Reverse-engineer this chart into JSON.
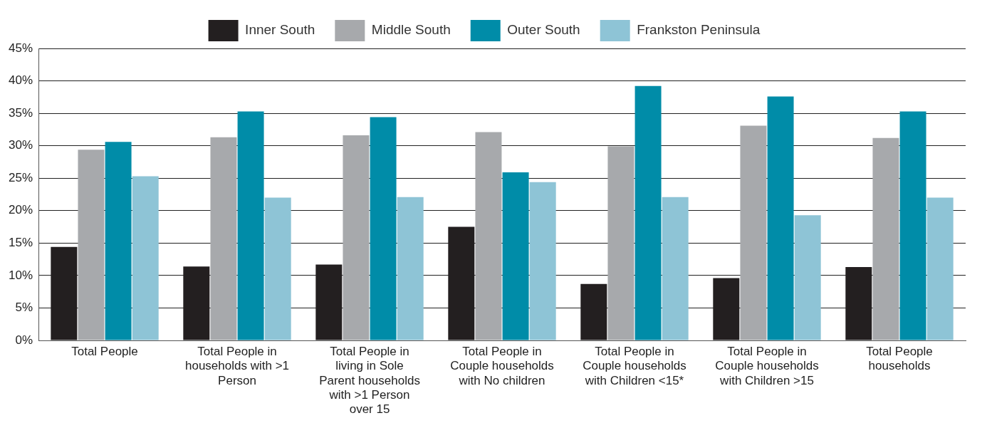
{
  "chart_data": {
    "type": "bar",
    "categories": [
      "Total People",
      "Total People in households with >1 Person",
      "Total People in living in Sole Parent households with >1 Person over 15",
      "Total People in Couple households with No children",
      "Total People in Couple households with Children <15*",
      "Total People in Couple households with Children >15",
      "Total People households"
    ],
    "series": [
      {
        "name": "Inner South",
        "color": "#231f20",
        "values": [
          14.4,
          11.4,
          11.7,
          17.5,
          8.7,
          9.6,
          11.3
        ]
      },
      {
        "name": "Middle South",
        "color": "#a7a9ac",
        "values": [
          29.4,
          31.3,
          31.6,
          32.1,
          29.9,
          33.1,
          31.2
        ]
      },
      {
        "name": "Outer South",
        "color": "#008ca8",
        "values": [
          30.6,
          35.3,
          34.4,
          25.9,
          39.2,
          37.6,
          35.3
        ]
      },
      {
        "name": "Frankston Peninsula",
        "color": "#8ec4d6",
        "values": [
          25.3,
          22.0,
          22.1,
          24.4,
          22.1,
          19.3,
          22.0
        ]
      }
    ],
    "ylim": [
      0,
      45
    ],
    "yticks": [
      {
        "value": 0,
        "label": "0%"
      },
      {
        "value": 5,
        "label": "5%"
      },
      {
        "value": 10,
        "label": "10%"
      },
      {
        "value": 15,
        "label": "15%"
      },
      {
        "value": 20,
        "label": "20%"
      },
      {
        "value": 25,
        "label": "25%"
      },
      {
        "value": 30,
        "label": "30%"
      },
      {
        "value": 35,
        "label": "35%"
      },
      {
        "value": 40,
        "label": "40%"
      },
      {
        "value": 45,
        "label": "45%"
      }
    ],
    "grid": "y",
    "legend": "top"
  }
}
